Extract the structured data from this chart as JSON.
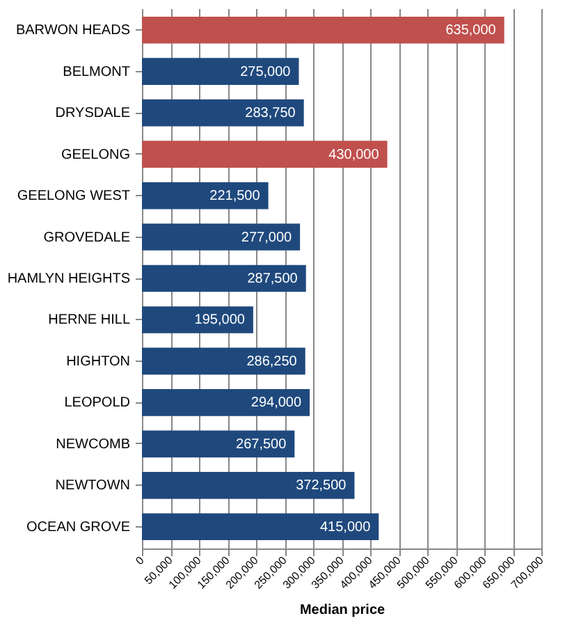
{
  "chart_data": {
    "type": "bar",
    "orientation": "horizontal",
    "xlabel": "Median price",
    "categories": [
      "BARWON HEADS",
      "BELMONT",
      "DRYSDALE",
      "GEELONG",
      "GEELONG WEST",
      "GROVEDALE",
      "HAMLYN HEIGHTS",
      "HERNE HILL",
      "HIGHTON",
      "LEOPOLD",
      "NEWCOMB",
      "NEWTOWN",
      "OCEAN GROVE"
    ],
    "values": [
      635000,
      275000,
      283750,
      430000,
      221500,
      277000,
      287500,
      195000,
      286250,
      294000,
      267500,
      372500,
      415000
    ],
    "value_labels": [
      "635,000",
      "275,000",
      "283,750",
      "430,000",
      "221,500",
      "277,000",
      "287,500",
      "195,000",
      "286,250",
      "294,000",
      "267,500",
      "372,500",
      "415,000"
    ],
    "colors": [
      "#c0504d",
      "#1f497d",
      "#1f497d",
      "#c0504d",
      "#1f497d",
      "#1f497d",
      "#1f497d",
      "#1f497d",
      "#1f497d",
      "#1f497d",
      "#1f497d",
      "#1f497d",
      "#1f497d"
    ],
    "xlim": [
      0,
      700000
    ],
    "xticks": [
      0,
      {
        "value": 50000,
        "label": "50,000"
      },
      {
        "value": 100000,
        "label": "100,000"
      },
      {
        "value": 150000,
        "label": "150,000"
      },
      {
        "value": 200000,
        "label": "200,000"
      },
      {
        "value": 250000,
        "label": "250,000"
      },
      {
        "value": 300000,
        "label": "300,000"
      },
      {
        "value": 350000,
        "label": "350,000"
      },
      {
        "value": 400000,
        "label": "400,000"
      },
      {
        "value": 450000,
        "label": "450,000"
      },
      {
        "value": 500000,
        "label": "500,000"
      },
      {
        "value": 550000,
        "label": "550,000"
      },
      {
        "value": 600000,
        "label": "600,000"
      },
      {
        "value": 650000,
        "label": "650,000"
      },
      {
        "value": 700000,
        "label": "700,000"
      }
    ],
    "grid": "x"
  }
}
